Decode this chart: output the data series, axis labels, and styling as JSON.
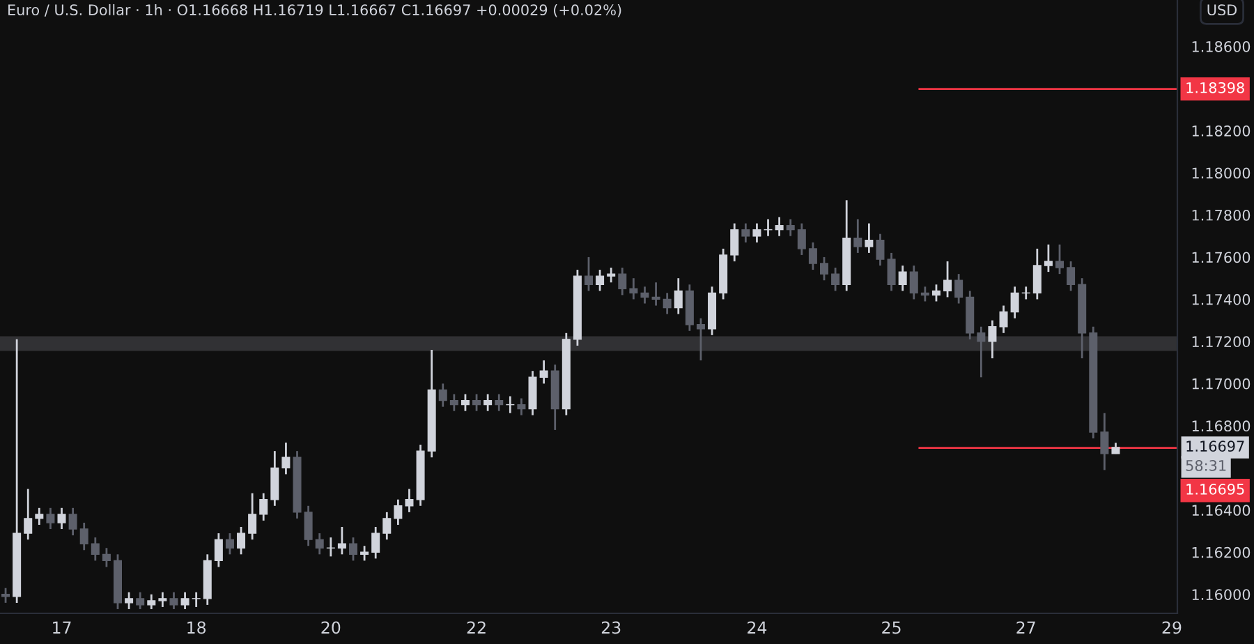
{
  "chart_data": {
    "type": "candlestick",
    "title": "Euro / U.S. Dollar · 1h · O1.16668 H1.16719 L1.16667 C1.16697 +0.00029 (+0.02%)",
    "ylabel": "USD",
    "categories": [
      null,
      null,
      null,
      null,
      null,
      "17",
      null,
      null,
      null,
      null,
      null,
      null,
      null,
      null,
      null,
      null,
      null,
      "18",
      null,
      null,
      null,
      null,
      null,
      null,
      null,
      null,
      null,
      null,
      null,
      "20",
      null,
      null,
      null,
      null,
      null,
      null,
      null,
      null,
      null,
      null,
      null,
      null,
      "22",
      null,
      null,
      null,
      null,
      null,
      null,
      null,
      null,
      null,
      null,
      null,
      "23",
      null,
      null,
      null,
      null,
      null,
      null,
      null,
      null,
      null,
      null,
      null,
      null,
      "24",
      null,
      null,
      null,
      null,
      null,
      null,
      null,
      null,
      null,
      null,
      null,
      "25",
      null,
      null,
      null,
      null,
      null,
      null,
      null,
      null,
      null,
      null,
      null,
      "27",
      null,
      null,
      null,
      null,
      null,
      null,
      null,
      null,
      null,
      null,
      null,
      null,
      "29"
    ],
    "ohlc": [
      [
        1.16,
        1.1603,
        1.1596,
        1.1599
      ],
      [
        1.1599,
        1.1721,
        1.1596,
        1.1629
      ],
      [
        1.1629,
        1.165,
        1.1626,
        1.1636
      ],
      [
        1.1636,
        1.1641,
        1.1633,
        1.1638
      ],
      [
        1.1638,
        1.1641,
        1.1631,
        1.1634
      ],
      [
        1.1634,
        1.1641,
        1.1631,
        1.1638
      ],
      [
        1.1638,
        1.1641,
        1.1628,
        1.1631
      ],
      [
        1.1631,
        1.1634,
        1.1621,
        1.1624
      ],
      [
        1.1624,
        1.1627,
        1.1616,
        1.1619
      ],
      [
        1.1619,
        1.1622,
        1.1613,
        1.1616
      ],
      [
        1.1616,
        1.1619,
        1.1593,
        1.1596
      ],
      [
        1.1596,
        1.1601,
        1.1593,
        1.1598
      ],
      [
        1.1598,
        1.1601,
        1.1593,
        1.1595
      ],
      [
        1.1595,
        1.16,
        1.1593,
        1.1597
      ],
      [
        1.1597,
        1.1601,
        1.1594,
        1.1598
      ],
      [
        1.1598,
        1.1601,
        1.1593,
        1.1595
      ],
      [
        1.1595,
        1.1601,
        1.1593,
        1.1598
      ],
      [
        1.1598,
        1.1601,
        1.1594,
        1.1598
      ],
      [
        1.1598,
        1.1619,
        1.1595,
        1.1616
      ],
      [
        1.1616,
        1.1629,
        1.1613,
        1.1626
      ],
      [
        1.1626,
        1.1629,
        1.1619,
        1.1622
      ],
      [
        1.1622,
        1.1632,
        1.1619,
        1.1629
      ],
      [
        1.1629,
        1.1648,
        1.1626,
        1.1638
      ],
      [
        1.1638,
        1.1648,
        1.1635,
        1.1645
      ],
      [
        1.1645,
        1.1668,
        1.1642,
        1.166
      ],
      [
        1.166,
        1.1672,
        1.1657,
        1.1665
      ],
      [
        1.1665,
        1.1668,
        1.1636,
        1.1639
      ],
      [
        1.1639,
        1.1642,
        1.1623,
        1.1626
      ],
      [
        1.1626,
        1.1629,
        1.1619,
        1.1622
      ],
      [
        1.1622,
        1.1627,
        1.1618,
        1.1622
      ],
      [
        1.1622,
        1.1632,
        1.1619,
        1.1624
      ],
      [
        1.1624,
        1.1627,
        1.1616,
        1.1619
      ],
      [
        1.1619,
        1.1623,
        1.1616,
        1.162
      ],
      [
        1.162,
        1.1632,
        1.1617,
        1.1629
      ],
      [
        1.1629,
        1.1639,
        1.1626,
        1.1636
      ],
      [
        1.1636,
        1.1645,
        1.1633,
        1.1642
      ],
      [
        1.1642,
        1.165,
        1.1639,
        1.1645
      ],
      [
        1.1645,
        1.1671,
        1.1642,
        1.1668
      ],
      [
        1.1668,
        1.1716,
        1.1665,
        1.1697
      ],
      [
        1.1697,
        1.17,
        1.1689,
        1.1692
      ],
      [
        1.1692,
        1.1695,
        1.1687,
        1.169
      ],
      [
        1.169,
        1.1695,
        1.1687,
        1.1692
      ],
      [
        1.1692,
        1.1695,
        1.1687,
        1.169
      ],
      [
        1.169,
        1.1695,
        1.1687,
        1.1692
      ],
      [
        1.1692,
        1.1695,
        1.1687,
        1.169
      ],
      [
        1.169,
        1.1694,
        1.1686,
        1.169
      ],
      [
        1.169,
        1.1693,
        1.1685,
        1.1688
      ],
      [
        1.1688,
        1.1706,
        1.1685,
        1.1703
      ],
      [
        1.1703,
        1.1711,
        1.17,
        1.1706
      ],
      [
        1.1706,
        1.1709,
        1.1678,
        1.1688
      ],
      [
        1.1688,
        1.1724,
        1.1685,
        1.1721
      ],
      [
        1.1721,
        1.1754,
        1.1718,
        1.1751
      ],
      [
        1.1751,
        1.176,
        1.1744,
        1.1747
      ],
      [
        1.1747,
        1.1754,
        1.1744,
        1.1751
      ],
      [
        1.1751,
        1.1755,
        1.1748,
        1.1752
      ],
      [
        1.1752,
        1.1755,
        1.1742,
        1.1745
      ],
      [
        1.1745,
        1.175,
        1.174,
        1.1743
      ],
      [
        1.1743,
        1.1746,
        1.1738,
        1.1741
      ],
      [
        1.1741,
        1.1748,
        1.1737,
        1.174
      ],
      [
        1.174,
        1.1743,
        1.1733,
        1.1736
      ],
      [
        1.1736,
        1.175,
        1.1733,
        1.1744
      ],
      [
        1.1744,
        1.1747,
        1.1725,
        1.1728
      ],
      [
        1.1728,
        1.1731,
        1.1711,
        1.1726
      ],
      [
        1.1726,
        1.1746,
        1.1723,
        1.1743
      ],
      [
        1.1743,
        1.1764,
        1.174,
        1.1761
      ],
      [
        1.1761,
        1.1776,
        1.1758,
        1.1773
      ],
      [
        1.1773,
        1.1776,
        1.1767,
        1.177
      ],
      [
        1.177,
        1.1776,
        1.1767,
        1.1773
      ],
      [
        1.1773,
        1.1778,
        1.177,
        1.1773
      ],
      [
        1.1773,
        1.1779,
        1.177,
        1.1775
      ],
      [
        1.1775,
        1.1778,
        1.177,
        1.1773
      ],
      [
        1.1773,
        1.1776,
        1.1761,
        1.1764
      ],
      [
        1.1764,
        1.1767,
        1.1754,
        1.1757
      ],
      [
        1.1757,
        1.176,
        1.1749,
        1.1752
      ],
      [
        1.1752,
        1.1755,
        1.1744,
        1.1747
      ],
      [
        1.1747,
        1.1787,
        1.1744,
        1.1769
      ],
      [
        1.1769,
        1.1778,
        1.1762,
        1.1765
      ],
      [
        1.1765,
        1.1776,
        1.1762,
        1.1768
      ],
      [
        1.1768,
        1.1771,
        1.1756,
        1.1759
      ],
      [
        1.1759,
        1.1762,
        1.1744,
        1.1747
      ],
      [
        1.1747,
        1.1756,
        1.1744,
        1.1753
      ],
      [
        1.1753,
        1.1756,
        1.174,
        1.1743
      ],
      [
        1.1743,
        1.1746,
        1.1739,
        1.1742
      ],
      [
        1.1742,
        1.1747,
        1.1739,
        1.1744
      ],
      [
        1.1744,
        1.1758,
        1.1741,
        1.1749
      ],
      [
        1.1749,
        1.1752,
        1.1738,
        1.1741
      ],
      [
        1.1741,
        1.1744,
        1.1721,
        1.1724
      ],
      [
        1.1724,
        1.1727,
        1.1703,
        1.172
      ],
      [
        1.172,
        1.173,
        1.1712,
        1.1727
      ],
      [
        1.1727,
        1.1737,
        1.1724,
        1.1734
      ],
      [
        1.1734,
        1.1746,
        1.1731,
        1.1743
      ],
      [
        1.1743,
        1.1746,
        1.174,
        1.1743
      ],
      [
        1.1743,
        1.1764,
        1.174,
        1.1756
      ],
      [
        1.1756,
        1.1766,
        1.1753,
        1.1758
      ],
      [
        1.1758,
        1.1766,
        1.1752,
        1.1755
      ],
      [
        1.1755,
        1.1758,
        1.1744,
        1.1747
      ],
      [
        1.1747,
        1.175,
        1.1712,
        1.1724
      ],
      [
        1.1724,
        1.1727,
        1.1674,
        1.1677
      ],
      [
        1.1677,
        1.1686,
        1.1659,
        1.16668
      ],
      [
        1.16668,
        1.16719,
        1.16667,
        1.16697
      ],
      null,
      null,
      null,
      null,
      null
    ],
    "colors": [
      "#5d606b",
      "#d1d4dc",
      "#d1d4dc",
      "#d1d4dc",
      "#5d606b",
      "#d1d4dc",
      "#5d606b",
      "#5d606b",
      "#5d606b",
      "#5d606b",
      "#5d606b",
      "#d1d4dc",
      "#5d606b",
      "#d1d4dc",
      "#d1d4dc",
      "#5d606b",
      "#d1d4dc",
      "#d1d4dc",
      "#d1d4dc",
      "#d1d4dc",
      "#5d606b",
      "#d1d4dc",
      "#d1d4dc",
      "#d1d4dc",
      "#d1d4dc",
      "#d1d4dc",
      "#5d606b",
      "#5d606b",
      "#5d606b",
      "#d1d4dc",
      "#d1d4dc",
      "#5d606b",
      "#d1d4dc",
      "#d1d4dc",
      "#d1d4dc",
      "#d1d4dc",
      "#d1d4dc",
      "#d1d4dc",
      "#d1d4dc",
      "#5d606b",
      "#5d606b",
      "#d1d4dc",
      "#5d606b",
      "#d1d4dc",
      "#5d606b",
      "#d1d4dc",
      "#5d606b",
      "#d1d4dc",
      "#d1d4dc",
      "#5d606b",
      "#d1d4dc",
      "#d1d4dc",
      "#5d606b",
      "#d1d4dc",
      "#d1d4dc",
      "#5d606b",
      "#5d606b",
      "#5d606b",
      "#5d606b",
      "#5d606b",
      "#d1d4dc",
      "#5d606b",
      "#5d606b",
      "#d1d4dc",
      "#d1d4dc",
      "#d1d4dc",
      "#5d606b",
      "#d1d4dc",
      "#d1d4dc",
      "#d1d4dc",
      "#5d606b",
      "#5d606b",
      "#5d606b",
      "#5d606b",
      "#5d606b",
      "#d1d4dc",
      "#5d606b",
      "#d1d4dc",
      "#5d606b",
      "#5d606b",
      "#d1d4dc",
      "#5d606b",
      "#5d606b",
      "#d1d4dc",
      "#d1d4dc",
      "#5d606b",
      "#5d606b",
      "#5d606b",
      "#d1d4dc",
      "#d1d4dc",
      "#d1d4dc",
      "#d1d4dc",
      "#d1d4dc",
      "#d1d4dc",
      "#5d606b",
      "#5d606b",
      "#5d606b",
      "#5d606b",
      "#5d606b",
      "#d1d4dc",
      null,
      null,
      null,
      null,
      null
    ],
    "ylim": [
      1.1591,
      1.1882
    ],
    "yticks": [
      {
        "value": 1.16,
        "label": "1.16000"
      },
      {
        "value": 1.162,
        "label": "1.16200"
      },
      {
        "value": 1.164,
        "label": "1.16400"
      },
      {
        "value": 1.168,
        "label": "1.16800"
      },
      {
        "value": 1.17,
        "label": "1.17000"
      },
      {
        "value": 1.172,
        "label": "1.17200"
      },
      {
        "value": 1.174,
        "label": "1.17400"
      },
      {
        "value": 1.176,
        "label": "1.17600"
      },
      {
        "value": 1.178,
        "label": "1.17800"
      },
      {
        "value": 1.18,
        "label": "1.18000"
      },
      {
        "value": 1.182,
        "label": "1.18200"
      },
      {
        "value": 1.186,
        "label": "1.18600"
      }
    ],
    "ref_lines": [
      {
        "axis": "y",
        "value": 1.18398,
        "label": "1.18398",
        "color": "#f23645"
      },
      {
        "axis": "y",
        "value": 1.16695,
        "label": "1.16695",
        "color": "#f23645"
      }
    ],
    "bands": [
      {
        "axis": "y",
        "from": 1.1716,
        "to": 1.1722,
        "color": "#9598a1"
      }
    ],
    "annotations": [
      "1.16697",
      "58:31"
    ],
    "grid": false
  }
}
